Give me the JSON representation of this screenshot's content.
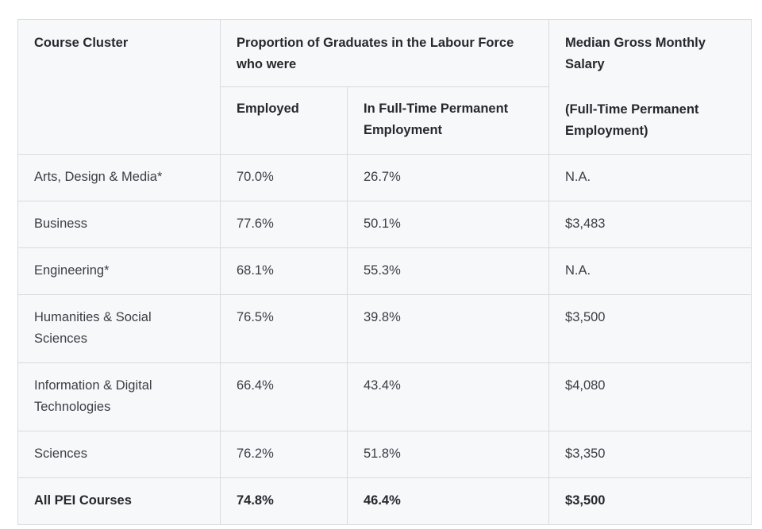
{
  "headers": {
    "course_cluster": "Course Cluster",
    "proportion": "Proportion of Graduates in the Labour Force who were",
    "salary_line1": "Median Gross Monthly Salary",
    "salary_line2": "(Full-Time Permanent Employment)",
    "employed": "Employed",
    "full_time": "In Full-Time Permanent Employment"
  },
  "rows": [
    {
      "cluster": "Arts, Design & Media*",
      "employed": "70.0%",
      "full_time": "26.7%",
      "salary": "N.A."
    },
    {
      "cluster": "Business",
      "employed": "77.6%",
      "full_time": "50.1%",
      "salary": "$3,483"
    },
    {
      "cluster": "Engineering*",
      "employed": "68.1%",
      "full_time": "55.3%",
      "salary": "N.A."
    },
    {
      "cluster": "Humanities & Social Sciences",
      "employed": "76.5%",
      "full_time": "39.8%",
      "salary": "$3,500"
    },
    {
      "cluster": "Information & Digital Technologies",
      "employed": "66.4%",
      "full_time": "43.4%",
      "salary": "$4,080"
    },
    {
      "cluster": "Sciences",
      "employed": "76.2%",
      "full_time": "51.8%",
      "salary": "$3,350"
    }
  ],
  "total": {
    "cluster": "All PEI Courses",
    "employed": "74.8%",
    "full_time": "46.4%",
    "salary": "$3,500"
  }
}
